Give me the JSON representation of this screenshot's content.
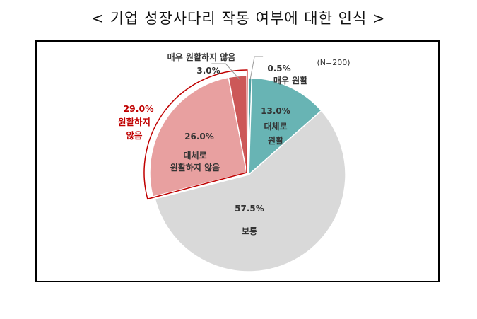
{
  "title": "< 기업 성장사다리 작동 여부에 대한 인식 >",
  "chart_data": {
    "type": "pie",
    "title": "< 기업 성장사다리 작동 여부에 대한 인식 >",
    "note": "(N=200)",
    "slices": [
      {
        "key": "very_smooth",
        "lines": [
          "매우 원활"
        ],
        "value": 0.5,
        "value_label": "0.5%",
        "color": "#4f9fa0"
      },
      {
        "key": "smooth",
        "lines": [
          "대체로",
          "원활"
        ],
        "value": 13.0,
        "value_label": "13.0%",
        "color": "#68b4b4"
      },
      {
        "key": "normal",
        "lines": [
          "보통"
        ],
        "value": 57.5,
        "value_label": "57.5%",
        "color": "#d9d9d9"
      },
      {
        "key": "not_smooth",
        "lines": [
          "대체로",
          "원활하지 않음"
        ],
        "value": 26.0,
        "value_label": "26.0%",
        "color": "#e8a0a0"
      },
      {
        "key": "very_not_smooth",
        "lines": [
          "매우 원활하지 않음"
        ],
        "value": 3.0,
        "value_label": "3.0%",
        "color": "#cc5858"
      }
    ],
    "group_annotation": {
      "value_label": "29.0%",
      "lines": [
        "원활하지",
        "않음"
      ],
      "color": "#c00000"
    }
  }
}
